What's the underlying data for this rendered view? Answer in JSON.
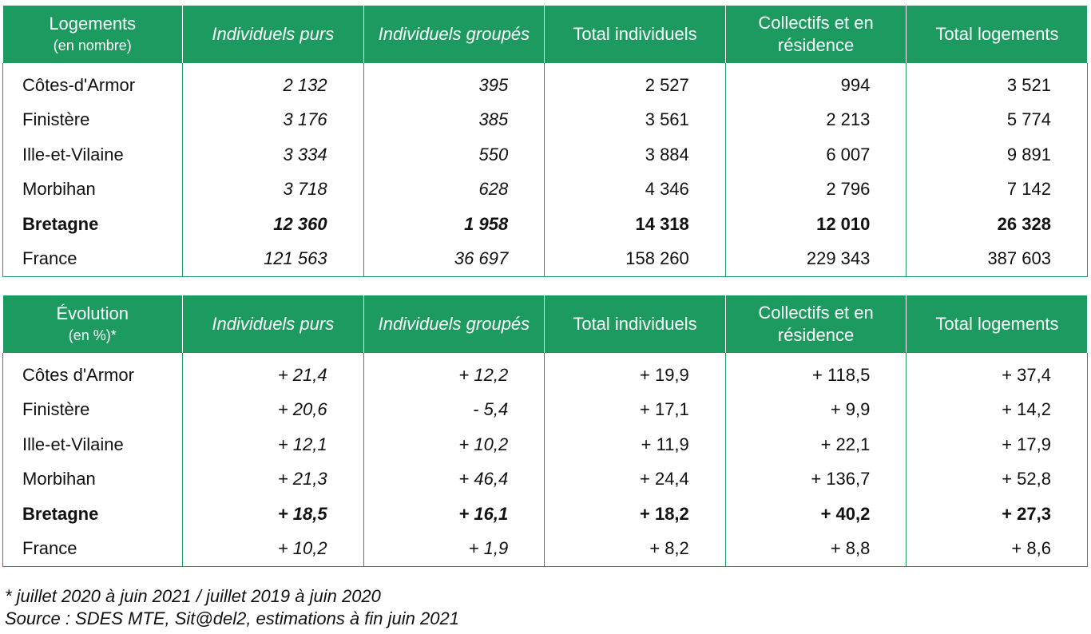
{
  "table1": {
    "header": {
      "first_line1": "Logements",
      "first_line2": "(en nombre)",
      "cols": [
        "Individuels purs",
        "Individuels groupés",
        "Total individuels",
        "Collectifs et en résidence",
        "Total logements"
      ]
    },
    "rows": [
      {
        "label": "Côtes-d'Armor",
        "values": [
          "2 132",
          "395",
          "2 527",
          "994",
          "3 521"
        ]
      },
      {
        "label": "Finistère",
        "values": [
          "3 176",
          "385",
          "3 561",
          "2 213",
          "5 774"
        ]
      },
      {
        "label": "Ille-et-Vilaine",
        "values": [
          "3 334",
          "550",
          "3 884",
          "6 007",
          "9 891"
        ]
      },
      {
        "label": "Morbihan",
        "values": [
          "3 718",
          "628",
          "4 346",
          "2 796",
          "7 142"
        ]
      },
      {
        "label": "Bretagne",
        "values": [
          "12 360",
          "1 958",
          "14 318",
          "12 010",
          "26 328"
        ]
      },
      {
        "label": "France",
        "values": [
          "121 563",
          "36 697",
          "158 260",
          "229 343",
          "387 603"
        ]
      }
    ]
  },
  "table2": {
    "header": {
      "first_line1": "Évolution",
      "first_line2": "(en %)*",
      "cols": [
        "Individuels purs",
        "Individuels groupés",
        "Total individuels",
        "Collectifs et en résidence",
        "Total logements"
      ]
    },
    "rows": [
      {
        "label": "Côtes d'Armor",
        "values": [
          "+ 21,4",
          "+ 12,2",
          "+ 19,9",
          "+ 118,5",
          "+ 37,4"
        ]
      },
      {
        "label": "Finistère",
        "values": [
          "+ 20,6",
          "- 5,4",
          "+ 17,1",
          "+ 9,9",
          "+ 14,2"
        ]
      },
      {
        "label": "Ille-et-Vilaine",
        "values": [
          "+ 12,1",
          "+ 10,2",
          "+ 11,9",
          "+ 22,1",
          "+ 17,9"
        ]
      },
      {
        "label": "Morbihan",
        "values": [
          "+ 21,3",
          "+ 46,4",
          "+ 24,4",
          "+ 136,7",
          "+ 52,8"
        ]
      },
      {
        "label": "Bretagne",
        "values": [
          "+ 18,5",
          "+ 16,1",
          "+ 18,2",
          "+ 40,2",
          "+ 27,3"
        ]
      },
      {
        "label": "France",
        "values": [
          "+ 10,2",
          "+ 1,9",
          "+ 8,2",
          "+ 8,8",
          "+ 8,6"
        ]
      }
    ]
  },
  "notes": {
    "footnote": "* juillet 2020 à juin 2021 / juillet 2019 à juin 2020",
    "source": "Source : SDES MTE, Sit@del2, estimations à fin juin 2021"
  },
  "colors": {
    "header_bg": "#1c9a5f",
    "header_text": "#ffffff",
    "border": "#1c9a5f"
  }
}
